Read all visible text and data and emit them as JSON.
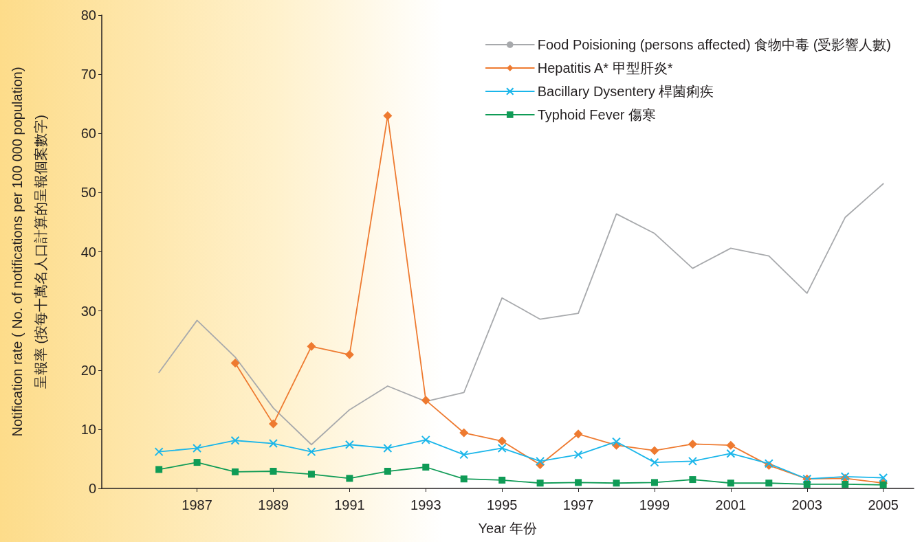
{
  "chart_data": {
    "type": "line",
    "xlabel": "Year 年份",
    "ylabel": "Notification rate ( No. of notifications per 100 000 population)\n呈報率 (按每十萬名人口計算的呈報個案數字)",
    "x": [
      1986,
      1987,
      1988,
      1989,
      1990,
      1991,
      1992,
      1993,
      1994,
      1995,
      1996,
      1997,
      1998,
      1999,
      2000,
      2001,
      2002,
      2003,
      2004,
      2005
    ],
    "series": [
      {
        "name": "Food Poisioning (persons affected) 食物中毒 (受影響人數)",
        "color": "#a7a9ac",
        "marker": "none",
        "values": [
          19.6,
          28.4,
          22.2,
          13.6,
          7.4,
          13.3,
          17.3,
          14.7,
          16.2,
          32.2,
          28.6,
          29.6,
          46.4,
          43.1,
          37.2,
          40.6,
          39.3,
          33.0,
          45.8,
          51.5
        ]
      },
      {
        "name": "Hepatitis A* 甲型肝炎*",
        "color": "#ee7a30",
        "marker": "diamond",
        "values": [
          null,
          null,
          21.2,
          10.9,
          24.0,
          22.6,
          63.0,
          14.9,
          9.4,
          8.0,
          4.0,
          9.2,
          7.3,
          6.4,
          7.5,
          7.3,
          3.9,
          1.6,
          1.7,
          0.9
        ]
      },
      {
        "name": "Bacillary Dysentery 桿菌痢疾",
        "color": "#1ab6ea",
        "marker": "cross",
        "values": [
          6.2,
          6.8,
          8.1,
          7.6,
          6.2,
          7.4,
          6.8,
          8.2,
          5.7,
          6.8,
          4.6,
          5.7,
          7.9,
          4.4,
          4.6,
          5.9,
          4.2,
          1.6,
          2.0,
          1.8
        ]
      },
      {
        "name": "Typhoid Fever 傷寒",
        "color": "#0f9b56",
        "marker": "square",
        "values": [
          3.2,
          4.4,
          2.8,
          2.9,
          2.4,
          1.7,
          2.9,
          3.6,
          1.6,
          1.4,
          0.9,
          1.0,
          0.9,
          1.0,
          1.5,
          0.9,
          0.9,
          0.7,
          0.7,
          0.6
        ]
      }
    ],
    "xlim": [
      1984.5,
      2005.8
    ],
    "xticks": [
      1987,
      1989,
      1991,
      1993,
      1995,
      1997,
      1999,
      2001,
      2003,
      2005
    ],
    "ylim": [
      0,
      80
    ],
    "yticks": [
      0,
      10,
      20,
      30,
      40,
      50,
      60,
      70,
      80
    ],
    "grid": false,
    "legend": "top right",
    "line_style": "solid"
  }
}
